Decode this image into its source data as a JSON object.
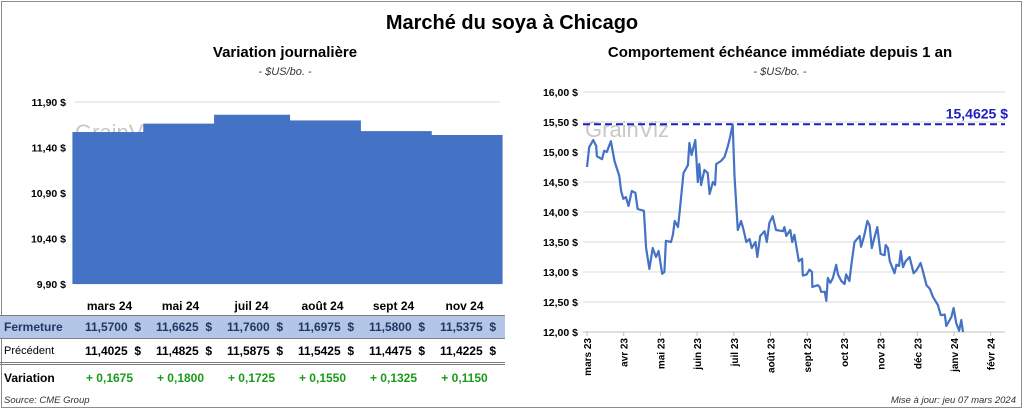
{
  "title": "Marché du soya à Chicago",
  "footer": {
    "source": "Source: CME Group",
    "update": "Mise à jour: jeu 07 mars 2024"
  },
  "watermark": "GrainViz",
  "colors": {
    "bar": "#4472c4",
    "line": "#4472c4",
    "max_line": "#1f1fbf",
    "fermeture_bg": "#b4c6e7",
    "variation": "#1a9a1a"
  },
  "table": {
    "row_labels": {
      "fermeture": "Fermeture",
      "precedent": "Précédent",
      "variation": "Variation"
    },
    "months": [
      "mars 24",
      "mai 24",
      "juil 24",
      "août 24",
      "sept 24",
      "nov 24"
    ],
    "fermeture": [
      "11,5700  $",
      "11,6625  $",
      "11,7600  $",
      "11,6975  $",
      "11,5800  $",
      "11,5375  $"
    ],
    "precedent": [
      "11,4025  $",
      "11,4825  $",
      "11,5875  $",
      "11,5425  $",
      "11,4475  $",
      "11,4225  $"
    ],
    "variation": [
      "+ 0,1675",
      "+ 0,1800",
      "+ 0,1725",
      "+ 0,1550",
      "+ 0,1325",
      "+ 0,1150"
    ]
  },
  "chart_data": [
    {
      "type": "bar",
      "title": "Variation journalière",
      "subtitle": "- $US/bo. -",
      "categories": [
        "mars 24",
        "mai 24",
        "juil 24",
        "août 24",
        "sept 24",
        "nov 24"
      ],
      "values": [
        11.57,
        11.6625,
        11.76,
        11.6975,
        11.58,
        11.5375
      ],
      "ylim": [
        9.9,
        11.9
      ],
      "yticks": [
        9.9,
        10.4,
        10.9,
        11.4,
        11.9
      ],
      "ytick_labels": [
        "9,90 $",
        "10,40 $",
        "10,90 $",
        "11,40 $",
        "11,90 $"
      ]
    },
    {
      "type": "line",
      "title": "Comportement  échéance immédiate depuis 1 an",
      "subtitle": "- $US/bo. -",
      "ylim": [
        12,
        16
      ],
      "yticks": [
        12,
        12.5,
        13,
        13.5,
        14,
        14.5,
        15,
        15.5,
        16
      ],
      "ytick_labels": [
        "12,00 $",
        "12,50 $",
        "13,00 $",
        "13,50 $",
        "14,00 $",
        "14,50 $",
        "15,00 $",
        "15,50 $",
        "16,00 $"
      ],
      "xtick_labels": [
        "mars 23",
        "avr 23",
        "mai 23",
        "juin 23",
        "juil 23",
        "août 23",
        "sept 23",
        "oct 23",
        "nov 23",
        "déc 23",
        "janv 24",
        "févr 24"
      ],
      "x_unit": "months since mars 23",
      "max_value": 15.4625,
      "max_label": "15,4625  $",
      "points": [
        [
          0,
          14.75
        ],
        [
          0.06,
          15.08
        ],
        [
          0.17,
          15.2
        ],
        [
          0.25,
          15.1
        ],
        [
          0.27,
          14.93
        ],
        [
          0.41,
          14.88
        ],
        [
          0.47,
          15.02
        ],
        [
          0.54,
          15.0
        ],
        [
          0.65,
          15.18
        ],
        [
          0.75,
          14.85
        ],
        [
          0.88,
          14.6
        ],
        [
          0.93,
          14.35
        ],
        [
          0.99,
          14.22
        ],
        [
          1.06,
          14.25
        ],
        [
          1.13,
          14.1
        ],
        [
          1.22,
          14.35
        ],
        [
          1.32,
          14.32
        ],
        [
          1.38,
          14.05
        ],
        [
          1.55,
          14.02
        ],
        [
          1.61,
          13.4
        ],
        [
          1.7,
          13.05
        ],
        [
          1.79,
          13.4
        ],
        [
          1.88,
          13.25
        ],
        [
          1.95,
          13.35
        ],
        [
          2.05,
          12.97
        ],
        [
          2.11,
          13.0
        ],
        [
          2.15,
          13.52
        ],
        [
          2.29,
          13.5
        ],
        [
          2.34,
          13.62
        ],
        [
          2.39,
          13.85
        ],
        [
          2.48,
          13.75
        ],
        [
          2.52,
          13.98
        ],
        [
          2.63,
          14.65
        ],
        [
          2.75,
          14.78
        ],
        [
          2.79,
          15.15
        ],
        [
          2.85,
          14.95
        ],
        [
          2.95,
          15.2
        ],
        [
          3.02,
          14.5
        ],
        [
          3.06,
          14.8
        ],
        [
          3.11,
          14.45
        ],
        [
          3.2,
          14.7
        ],
        [
          3.29,
          14.65
        ],
        [
          3.34,
          14.3
        ],
        [
          3.43,
          14.5
        ],
        [
          3.49,
          14.45
        ],
        [
          3.52,
          14.8
        ],
        [
          3.65,
          14.85
        ],
        [
          3.75,
          14.92
        ],
        [
          3.84,
          15.1
        ],
        [
          3.9,
          15.25
        ],
        [
          3.97,
          15.46
        ],
        [
          4.02,
          14.6
        ],
        [
          4.11,
          13.7
        ],
        [
          4.2,
          13.85
        ],
        [
          4.26,
          13.72
        ],
        [
          4.34,
          13.5
        ],
        [
          4.43,
          13.55
        ],
        [
          4.49,
          13.4
        ],
        [
          4.59,
          13.5
        ],
        [
          4.64,
          13.25
        ],
        [
          4.72,
          13.6
        ],
        [
          4.84,
          13.68
        ],
        [
          4.9,
          13.5
        ],
        [
          4.97,
          13.82
        ],
        [
          5.06,
          13.93
        ],
        [
          5.15,
          13.7
        ],
        [
          5.34,
          13.68
        ],
        [
          5.38,
          13.75
        ],
        [
          5.43,
          13.6
        ],
        [
          5.54,
          13.7
        ],
        [
          5.59,
          13.5
        ],
        [
          5.65,
          13.62
        ],
        [
          5.77,
          13.18
        ],
        [
          5.86,
          13.22
        ],
        [
          5.88,
          12.94
        ],
        [
          5.99,
          12.96
        ],
        [
          6.06,
          13.04
        ],
        [
          6.13,
          13.0
        ],
        [
          6.14,
          12.75
        ],
        [
          6.29,
          12.78
        ],
        [
          6.34,
          12.75
        ],
        [
          6.38,
          12.67
        ],
        [
          6.48,
          12.67
        ],
        [
          6.52,
          12.52
        ],
        [
          6.56,
          12.9
        ],
        [
          6.63,
          12.82
        ],
        [
          6.7,
          12.9
        ],
        [
          6.79,
          13.12
        ],
        [
          6.84,
          12.96
        ],
        [
          6.93,
          12.85
        ],
        [
          7.02,
          12.8
        ],
        [
          7.06,
          12.96
        ],
        [
          7.15,
          12.85
        ],
        [
          7.2,
          13.1
        ],
        [
          7.29,
          13.5
        ],
        [
          7.43,
          13.6
        ],
        [
          7.47,
          13.42
        ],
        [
          7.55,
          13.6
        ],
        [
          7.64,
          13.85
        ],
        [
          7.7,
          13.78
        ],
        [
          7.76,
          13.4
        ],
        [
          7.81,
          13.52
        ],
        [
          7.91,
          13.75
        ],
        [
          8.0,
          13.3
        ],
        [
          8.11,
          13.28
        ],
        [
          8.14,
          13.45
        ],
        [
          8.2,
          13.4
        ],
        [
          8.25,
          13.18
        ],
        [
          8.38,
          12.98
        ],
        [
          8.43,
          13.12
        ],
        [
          8.5,
          13.1
        ],
        [
          8.55,
          13.35
        ],
        [
          8.61,
          13.08
        ],
        [
          8.68,
          13.18
        ],
        [
          8.79,
          13.25
        ],
        [
          8.9,
          12.98
        ],
        [
          8.99,
          13.04
        ],
        [
          9.09,
          13.15
        ],
        [
          9.15,
          13.02
        ],
        [
          9.25,
          12.78
        ],
        [
          9.34,
          12.72
        ],
        [
          9.43,
          12.58
        ],
        [
          9.56,
          12.45
        ],
        [
          9.64,
          12.28
        ],
        [
          9.75,
          12.29
        ],
        [
          9.79,
          12.1
        ],
        [
          9.93,
          12.25
        ],
        [
          9.99,
          12.4
        ],
        [
          10.06,
          12.15
        ],
        [
          10.14,
          12.02
        ],
        [
          10.2,
          12.2
        ],
        [
          10.25,
          11.98
        ],
        [
          10.38,
          11.98
        ]
      ]
    }
  ]
}
